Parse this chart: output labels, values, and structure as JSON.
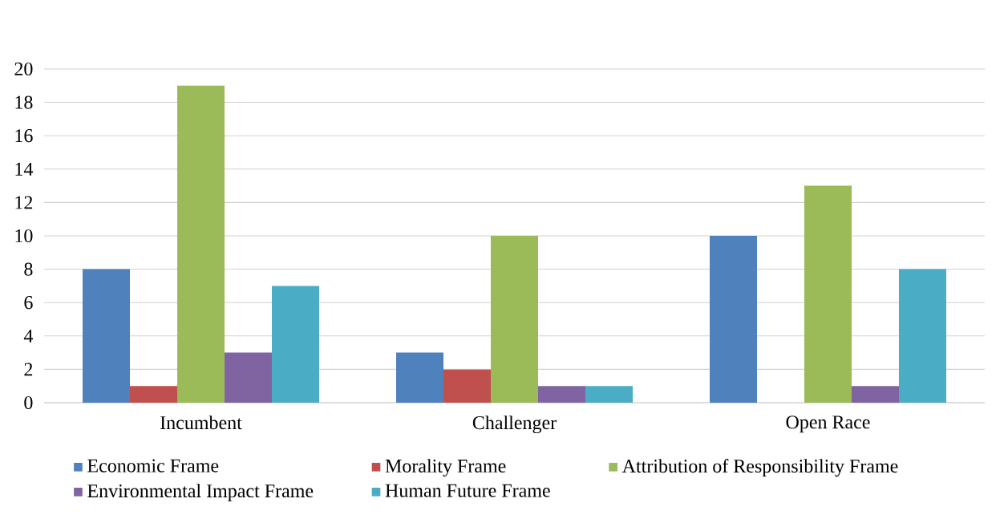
{
  "chart_data": {
    "type": "bar",
    "categories": [
      "Incumbent",
      "Challenger",
      "Open Race"
    ],
    "series": [
      {
        "name": "Economic Frame",
        "color": "#4f81bd",
        "values": [
          8,
          3,
          10
        ]
      },
      {
        "name": "Morality Frame",
        "color": "#c0504d",
        "values": [
          1,
          2,
          0
        ]
      },
      {
        "name": "Attribution of Responsibility Frame",
        "color": "#9bbb59",
        "values": [
          19,
          10,
          13
        ]
      },
      {
        "name": "Environmental Impact Frame",
        "color": "#8064a2",
        "values": [
          3,
          1,
          1
        ]
      },
      {
        "name": "Human Future Frame",
        "color": "#4bacc6",
        "values": [
          7,
          1,
          8
        ]
      }
    ],
    "ylim": [
      0,
      20
    ],
    "yticks": [
      0,
      2,
      4,
      6,
      8,
      10,
      12,
      14,
      16,
      18,
      20
    ],
    "grid": "y",
    "legend": "bottom"
  }
}
